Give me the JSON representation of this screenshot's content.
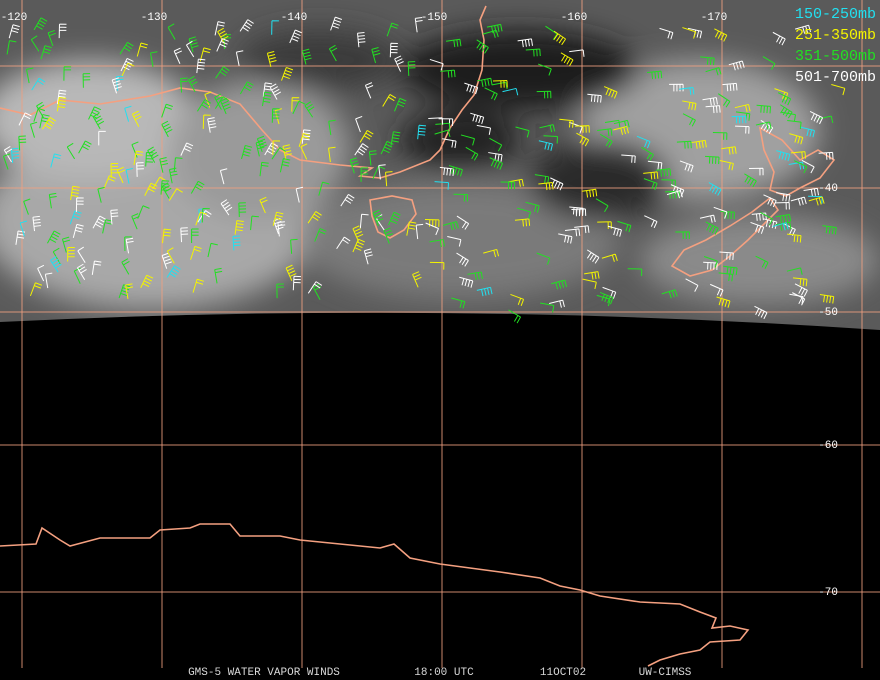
{
  "map": {
    "longitude_labels": [
      "-120",
      "-130",
      "-140",
      "-150",
      "-160",
      "-170"
    ],
    "latitude_labels": [
      "-40",
      "-50",
      "-60",
      "-70"
    ],
    "legend": [
      {
        "label": "150-250mb",
        "color": "#22e0f0"
      },
      {
        "label": "251-350mb",
        "color": "#f4f400"
      },
      {
        "label": "351-500mb",
        "color": "#22e022"
      },
      {
        "label": "501-700mb",
        "color": "#ffffff"
      }
    ],
    "footer": [
      "GMS-5 WATER VAPOR WINDS",
      "18:00 UTC",
      "11OCT02",
      "UW-CIMSS"
    ]
  }
}
